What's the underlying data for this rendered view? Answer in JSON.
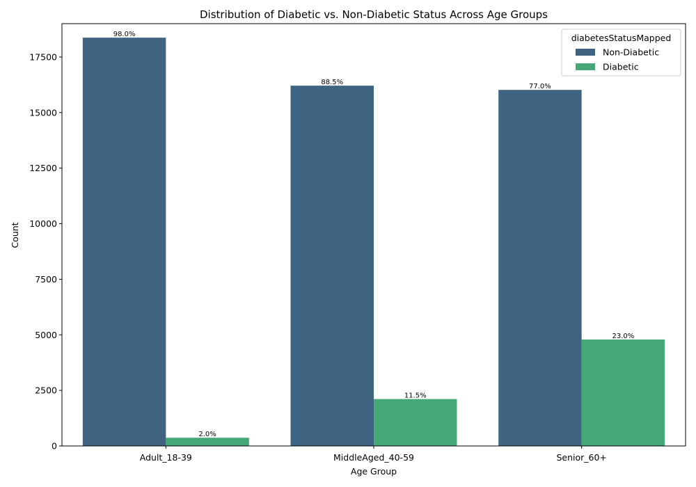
{
  "chart_data": {
    "type": "bar",
    "title": "Distribution of Diabetic vs. Non-Diabetic Status Across Age Groups",
    "xlabel": "Age Group",
    "ylabel": "Count",
    "categories": [
      "Adult_18-39",
      "MiddleAged_40-59",
      "Senior_60+"
    ],
    "ylim": [
      0,
      19000
    ],
    "yticks": [
      0,
      2500,
      5000,
      7500,
      10000,
      12500,
      15000,
      17500
    ],
    "legend": {
      "title": "diabetesStatusMapped",
      "placement": "top-right"
    },
    "series": [
      {
        "name": "Non-Diabetic",
        "color": "#3e6482",
        "values": [
          18370,
          16210,
          16020
        ],
        "labels": [
          "98.0%",
          "88.5%",
          "77.0%"
        ]
      },
      {
        "name": "Diabetic",
        "color": "#45a876",
        "values": [
          370,
          2110,
          4790
        ],
        "labels": [
          "2.0%",
          "11.5%",
          "23.0%"
        ]
      }
    ],
    "grid": false
  }
}
